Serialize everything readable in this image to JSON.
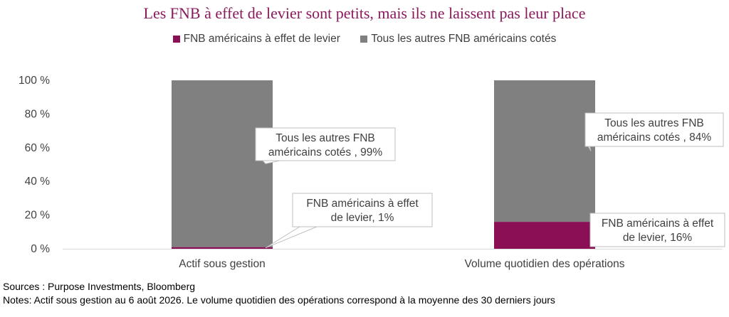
{
  "title": "Les FNB à effet de levier sont petits, mais ils ne laissent pas leur place",
  "sources": "Sources : Purpose Investments, Bloomberg",
  "notes": "Notes: Actif sous gestion au 6 août 2026. Le volume quotidien des opérations correspond à la moyenne des 30 derniers jours",
  "chart_data": {
    "type": "bar",
    "stacked": true,
    "percent": true,
    "categories": [
      "Actif sous gestion",
      "Volume quotidien des opérations"
    ],
    "series": [
      {
        "name": "FNB américains à effet de levier",
        "values": [
          1,
          16
        ],
        "color": "#8a0f55"
      },
      {
        "name": "Tous les autres FNB américains cotés",
        "values": [
          99,
          84
        ],
        "color": "#808080"
      }
    ],
    "ylim": [
      0,
      100
    ],
    "yticks": [
      "0 %",
      "20 %",
      "40 %",
      "60 %",
      "80 %",
      "100 %"
    ],
    "legend_position": "top",
    "grid": false,
    "callouts": [
      {
        "category": 0,
        "series": 1,
        "lines": [
          "Tous les autres FNB",
          "américains cotés , 99%"
        ]
      },
      {
        "category": 0,
        "series": 0,
        "lines": [
          "FNB américains à effet",
          "de levier, 1%"
        ]
      },
      {
        "category": 1,
        "series": 1,
        "lines": [
          "Tous les autres FNB",
          "américains cotés , 84%"
        ]
      },
      {
        "category": 1,
        "series": 0,
        "lines": [
          "FNB américains à effet",
          "de levier, 16%"
        ]
      }
    ]
  }
}
